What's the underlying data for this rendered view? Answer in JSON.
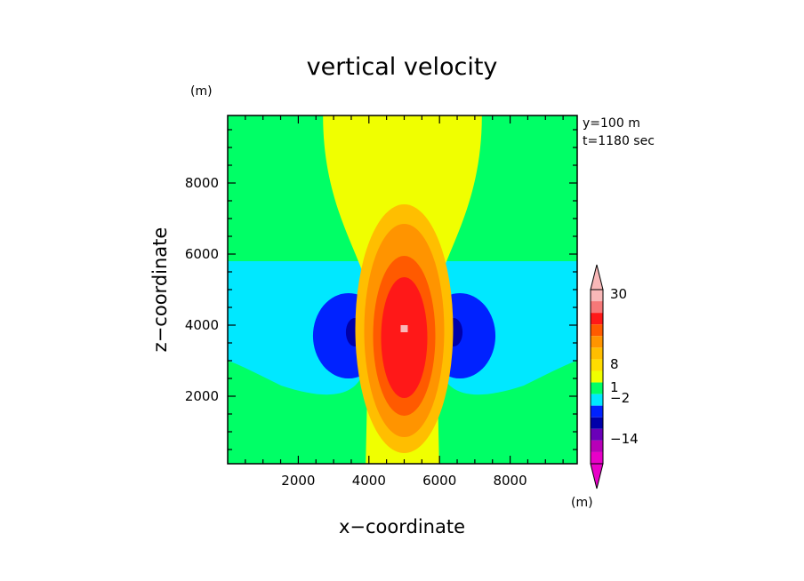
{
  "chart_data": {
    "type": "heatmap",
    "title": "vertical velocity",
    "xlabel": "x−coordinate",
    "ylabel": "z−coordinate",
    "x_unit": "(m)",
    "y_unit": "(m)",
    "annotations": [
      "y=100 m",
      "t=1180 sec"
    ],
    "xlim": [
      0,
      9900
    ],
    "ylim": [
      100,
      9900
    ],
    "xticks": [
      2000,
      4000,
      6000,
      8000
    ],
    "yticks": [
      2000,
      4000,
      6000,
      8000
    ],
    "colorbar": {
      "unit": "(m)",
      "tick_labels": [
        "30",
        "8",
        "1",
        "−2",
        "−14"
      ],
      "tick_values": [
        30,
        8,
        1,
        -2,
        -14
      ],
      "levels": [
        {
          "color": "#f9b8b8"
        },
        {
          "color": "#f67878"
        },
        {
          "color": "#ff1818"
        },
        {
          "color": "#ff5a00"
        },
        {
          "color": "#ff9400"
        },
        {
          "color": "#ffbe00"
        },
        {
          "color": "#ffdc00"
        },
        {
          "color": "#f0ff00"
        },
        {
          "color": "#00ff66"
        },
        {
          "color": "#00e8ff"
        },
        {
          "color": "#0022ff"
        },
        {
          "color": "#0000aa"
        },
        {
          "color": "#6a00b8"
        },
        {
          "color": "#b800b8"
        },
        {
          "color": "#e800c8"
        }
      ]
    },
    "field": {
      "background_color": "#00ff66",
      "regions": [
        {
          "color": "#00e8ff",
          "x": [
            0,
            9900
          ],
          "z": [
            1800,
            5800
          ]
        },
        {
          "color": "#f0ff00",
          "x": [
            2700,
            7200
          ],
          "z": [
            100,
            9900
          ]
        },
        {
          "color": "#0022ff",
          "x": [
            3500,
            6500
          ],
          "z": [
            2500,
            4900
          ]
        },
        {
          "color": "#0000aa",
          "x": [
            3300,
            6800
          ],
          "z": [
            3400,
            4300
          ]
        },
        {
          "color": "#ffbe00",
          "x": [
            3900,
            6100
          ],
          "z": [
            500,
            7200
          ]
        },
        {
          "color": "#ff9400",
          "x": [
            4100,
            5900
          ],
          "z": [
            700,
            6700
          ]
        },
        {
          "color": "#ff5a00",
          "x": [
            4300,
            5700
          ],
          "z": [
            1600,
            5700
          ]
        },
        {
          "color": "#ff1818",
          "x": [
            4500,
            5500
          ],
          "z": [
            2100,
            5100
          ]
        },
        {
          "color": "#f67878",
          "x": [
            4900,
            5100
          ],
          "z": [
            3800,
            4000
          ]
        }
      ],
      "max_marker": {
        "x": 5000,
        "z": 3900,
        "color": "#f9b8b8"
      }
    }
  }
}
